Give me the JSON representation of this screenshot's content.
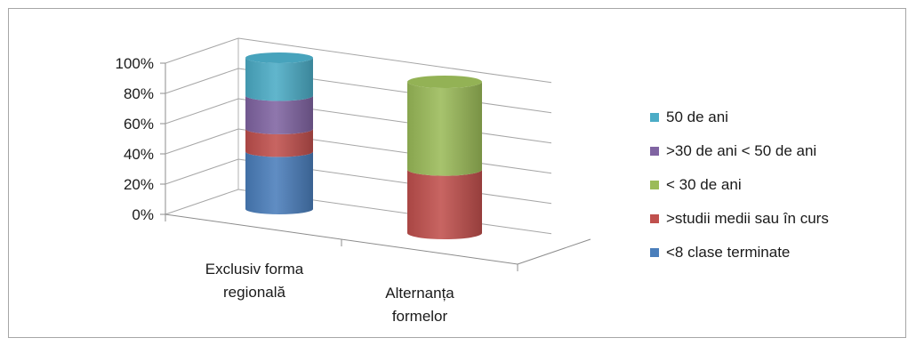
{
  "chart_data": {
    "type": "bar",
    "subtype": "stacked-100-3d-cylinder",
    "categories": [
      [
        "Exclusiv forma",
        "regională"
      ],
      [
        "Alternanța",
        "formelor"
      ]
    ],
    "series": [
      {
        "name": "<8 clase terminate",
        "color": "#4a7ebb",
        "values": [
          38,
          0
        ]
      },
      {
        "name": ">studii medii sau în curs",
        "color": "#c0504d",
        "values": [
          15,
          42
        ]
      },
      {
        "name": "< 30 de ani",
        "color": "#9bbb59",
        "values": [
          0,
          58
        ]
      },
      {
        "name": ">30 de ani < 50 de ani",
        "color": "#8064a2",
        "values": [
          22,
          0
        ]
      },
      {
        "name": "50 de ani",
        "color": "#4bacc6",
        "values": [
          25,
          0
        ]
      }
    ],
    "y_ticks": [
      "0%",
      "20%",
      "40%",
      "60%",
      "80%",
      "100%"
    ],
    "ylim": [
      0,
      100
    ],
    "legend_order": [
      "50 de ani",
      ">30 de ani < 50 de ani",
      "< 30 de ani",
      ">studii medii sau în curs",
      "<8 clase terminate"
    ],
    "legend_position": "right",
    "grid": true,
    "title": "",
    "xlabel": "",
    "ylabel": ""
  }
}
